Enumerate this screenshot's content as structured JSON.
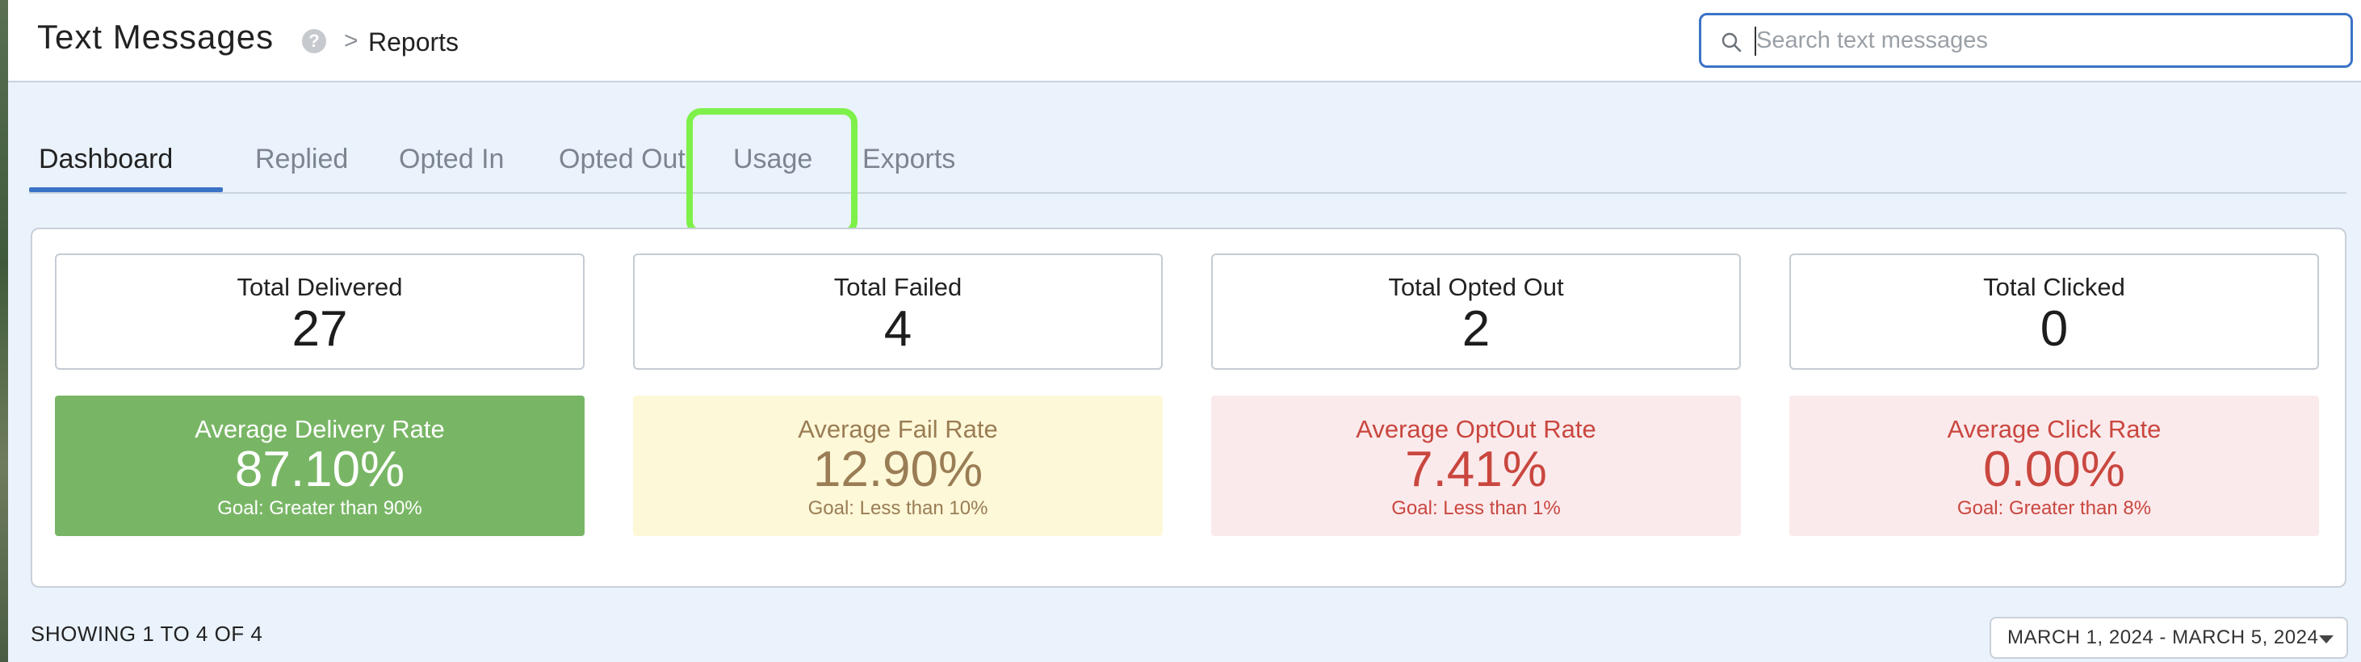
{
  "header": {
    "title": "Text Messages",
    "help_icon": "help-icon",
    "breadcrumb_separator": ">",
    "breadcrumb": "Reports",
    "search": {
      "placeholder": "Search text messages",
      "value": ""
    }
  },
  "tabs": [
    {
      "label": "Dashboard",
      "active": true
    },
    {
      "label": "Replied"
    },
    {
      "label": "Opted In"
    },
    {
      "label": "Opted Out"
    },
    {
      "label": "Usage",
      "highlighted": true
    },
    {
      "label": "Exports"
    }
  ],
  "stats": [
    {
      "label": "Total Delivered",
      "value": "27"
    },
    {
      "label": "Total Failed",
      "value": "4"
    },
    {
      "label": "Total Opted Out",
      "value": "2"
    },
    {
      "label": "Total Clicked",
      "value": "0"
    }
  ],
  "rates": [
    {
      "label": "Average Delivery Rate",
      "value": "87.10%",
      "goal": "Goal: Greater than 90%",
      "bg": "#78b665",
      "fg": "#ffffff"
    },
    {
      "label": "Average Fail Rate",
      "value": "12.90%",
      "goal": "Goal: Less than 10%",
      "bg": "#fdf8d8",
      "fg": "#9a7d55"
    },
    {
      "label": "Average OptOut Rate",
      "value": "7.41%",
      "goal": "Goal: Less than 1%",
      "bg": "#fbeaec",
      "fg": "#c9473f"
    },
    {
      "label": "Average Click Rate",
      "value": "0.00%",
      "goal": "Goal: Greater than 8%",
      "bg": "#fbeaec",
      "fg": "#c9473f"
    }
  ],
  "footer": {
    "showing": "SHOWING 1 TO 4 OF 4",
    "date_range": "MARCH 1, 2024 - MARCH 5, 2024"
  },
  "colors": {
    "accent": "#3b73c6",
    "highlight": "#7ef04a",
    "background": "#eaf2fb"
  }
}
